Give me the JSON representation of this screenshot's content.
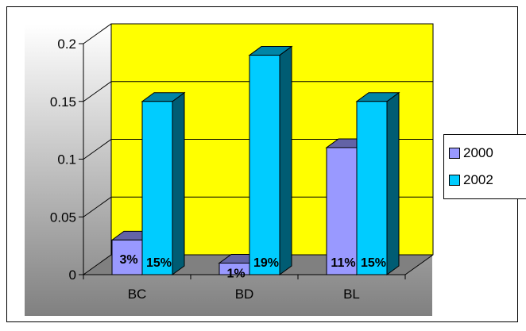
{
  "chart_data": {
    "type": "bar",
    "categories": [
      "BC",
      "BD",
      "BL"
    ],
    "series": [
      {
        "name": "2000",
        "values": [
          0.03,
          0.01,
          0.11
        ],
        "labels": [
          "3%",
          "1%",
          "11%"
        ],
        "color": "#9999ff"
      },
      {
        "name": "2002",
        "values": [
          0.15,
          0.19,
          0.15
        ],
        "labels": [
          "15%",
          "19%",
          "15%"
        ],
        "color": "#00ccff"
      }
    ],
    "yticks": [
      "0",
      "0.05",
      "0.1",
      "0.15",
      "0.2"
    ],
    "ylim": [
      0,
      0.2
    ],
    "grid": true,
    "legend": "right",
    "wall_color": "#ffff00",
    "floor_color": "#808080"
  }
}
